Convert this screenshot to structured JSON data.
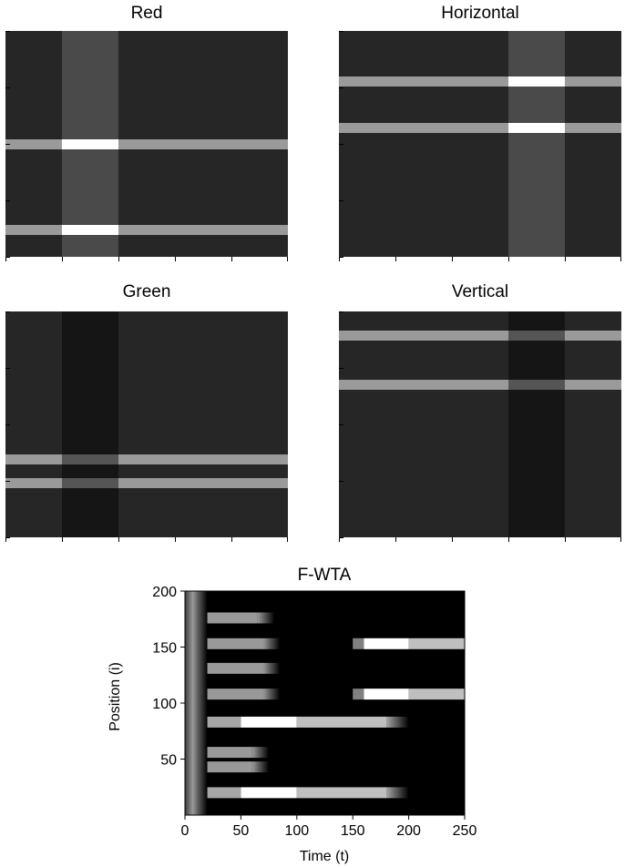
{
  "panels": [
    {
      "title": "Red",
      "cols": 5,
      "rows": 4,
      "vband_col": 1,
      "vband_tone": "light",
      "hbands": [
        0.5,
        0.88
      ]
    },
    {
      "title": "Horizontal",
      "cols": 5,
      "rows": 4,
      "vband_col": 3,
      "vband_tone": "light",
      "hbands": [
        0.225,
        0.43
      ]
    },
    {
      "title": "Green",
      "cols": 5,
      "rows": 4,
      "vband_col": 1,
      "vband_tone": "dark",
      "hbands": [
        0.655,
        0.76
      ]
    },
    {
      "title": "Vertical",
      "cols": 5,
      "rows": 4,
      "vband_col": 3,
      "vband_tone": "dark",
      "hbands": [
        0.105,
        0.325
      ]
    }
  ],
  "colors": {
    "panel_bg": "#262626",
    "vband_light": "#4a4a4a",
    "vband_dark": "#151515",
    "hband": "#9a9a9a",
    "hband_on_light": "#ffffff",
    "hband_on_dark": "#555555"
  },
  "chart_data": {
    "type": "heatmap",
    "title": "F-WTA",
    "xlabel": "Time (t)",
    "ylabel": "Position (i)",
    "xlim": [
      0,
      250
    ],
    "ylim": [
      0,
      200
    ],
    "xticks": [
      0,
      50,
      100,
      150,
      200,
      250
    ],
    "yticks": [
      50,
      100,
      150,
      200
    ],
    "initial_transient": [
      0,
      20
    ],
    "rows": [
      {
        "position": 20,
        "segments": [
          [
            20,
            50,
            0.65
          ],
          [
            50,
            100,
            1.0
          ],
          [
            100,
            180,
            0.75
          ]
        ],
        "fade_end": 200
      },
      {
        "position": 43,
        "segments": [
          [
            20,
            60,
            0.6
          ]
        ],
        "fade_end": 75
      },
      {
        "position": 56,
        "segments": [
          [
            20,
            60,
            0.6
          ]
        ],
        "fade_end": 75
      },
      {
        "position": 83,
        "segments": [
          [
            20,
            50,
            0.65
          ],
          [
            50,
            100,
            1.0
          ],
          [
            100,
            180,
            0.75
          ]
        ],
        "fade_end": 200
      },
      {
        "position": 108,
        "segments": [
          [
            20,
            70,
            0.6
          ],
          [
            150,
            160,
            0.5
          ],
          [
            160,
            200,
            1.0
          ],
          [
            200,
            250,
            0.75
          ]
        ],
        "fade_end": 85
      },
      {
        "position": 131,
        "segments": [
          [
            20,
            70,
            0.6
          ]
        ],
        "fade_end": 85
      },
      {
        "position": 153,
        "segments": [
          [
            20,
            70,
            0.6
          ],
          [
            150,
            160,
            0.5
          ],
          [
            160,
            200,
            1.0
          ],
          [
            200,
            250,
            0.75
          ]
        ],
        "fade_end": 85
      },
      {
        "position": 176,
        "segments": [
          [
            20,
            65,
            0.6
          ]
        ],
        "fade_end": 80
      }
    ]
  }
}
